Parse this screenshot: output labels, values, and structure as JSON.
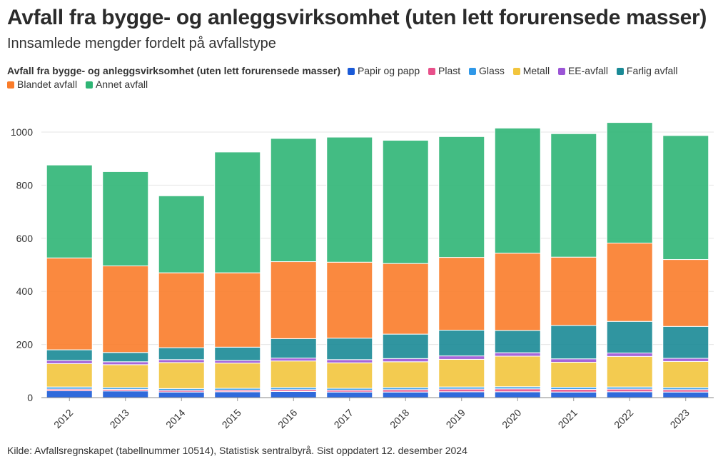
{
  "header": {
    "title": "Avfall fra bygge- og anleggsvirksomhet (uten lett forurensede masser)",
    "subtitle": "Innsamlede mengder fordelt på avfallstype"
  },
  "legend_title": "Avfall fra bygge- og anleggsvirksomhet (uten lett forurensede masser)",
  "footer": {
    "source": "Kilde: Avfallsregnskapet (tabellnummer 10514), Statistisk sentralbyrå. Sist oppdatert 12. desember 2024"
  },
  "chart_data": {
    "type": "bar",
    "stacked": true,
    "title": "Avfall fra bygge- og anleggsvirksomhet (uten lett forurensede masser)",
    "subtitle": "Innsamlede mengder fordelt på avfallstype",
    "xlabel": "",
    "ylabel": "",
    "ylim": [
      0,
      1100
    ],
    "yticks": [
      0,
      200,
      400,
      600,
      800,
      1000
    ],
    "grid": true,
    "legend_position": "top",
    "categories": [
      "2012",
      "2013",
      "2014",
      "2015",
      "2016",
      "2017",
      "2018",
      "2019",
      "2020",
      "2021",
      "2022",
      "2023"
    ],
    "series": [
      {
        "name": "Papir og papp",
        "color": "#1a5ad7",
        "values": [
          26,
          25,
          21,
          22,
          23,
          21,
          21,
          22,
          22,
          21,
          22,
          21
        ]
      },
      {
        "name": "Plast",
        "color": "#e8508a",
        "values": [
          6,
          6,
          6,
          6,
          7,
          7,
          9,
          10,
          11,
          10,
          10,
          9
        ]
      },
      {
        "name": "Glass",
        "color": "#2f98e8",
        "values": [
          8,
          7,
          7,
          7,
          8,
          7,
          8,
          8,
          8,
          8,
          8,
          8
        ]
      },
      {
        "name": "Metall",
        "color": "#f2c53d",
        "values": [
          88,
          86,
          98,
          95,
          100,
          96,
          97,
          104,
          115,
          94,
          115,
          98
        ]
      },
      {
        "name": "EE-avfall",
        "color": "#9b55d6",
        "values": [
          12,
          11,
          11,
          10,
          11,
          12,
          12,
          13,
          13,
          13,
          13,
          12
        ]
      },
      {
        "name": "Farlig avfall",
        "color": "#1a8a96",
        "values": [
          40,
          35,
          45,
          50,
          73,
          81,
          92,
          97,
          84,
          126,
          119,
          120
        ]
      },
      {
        "name": "Blandet avfall",
        "color": "#fa7c2a",
        "values": [
          346,
          326,
          282,
          280,
          290,
          286,
          266,
          274,
          291,
          257,
          295,
          252
        ]
      },
      {
        "name": "Annet avfall",
        "color": "#2fb575",
        "values": [
          350,
          355,
          290,
          455,
          464,
          471,
          464,
          455,
          471,
          465,
          454,
          467
        ]
      }
    ]
  }
}
